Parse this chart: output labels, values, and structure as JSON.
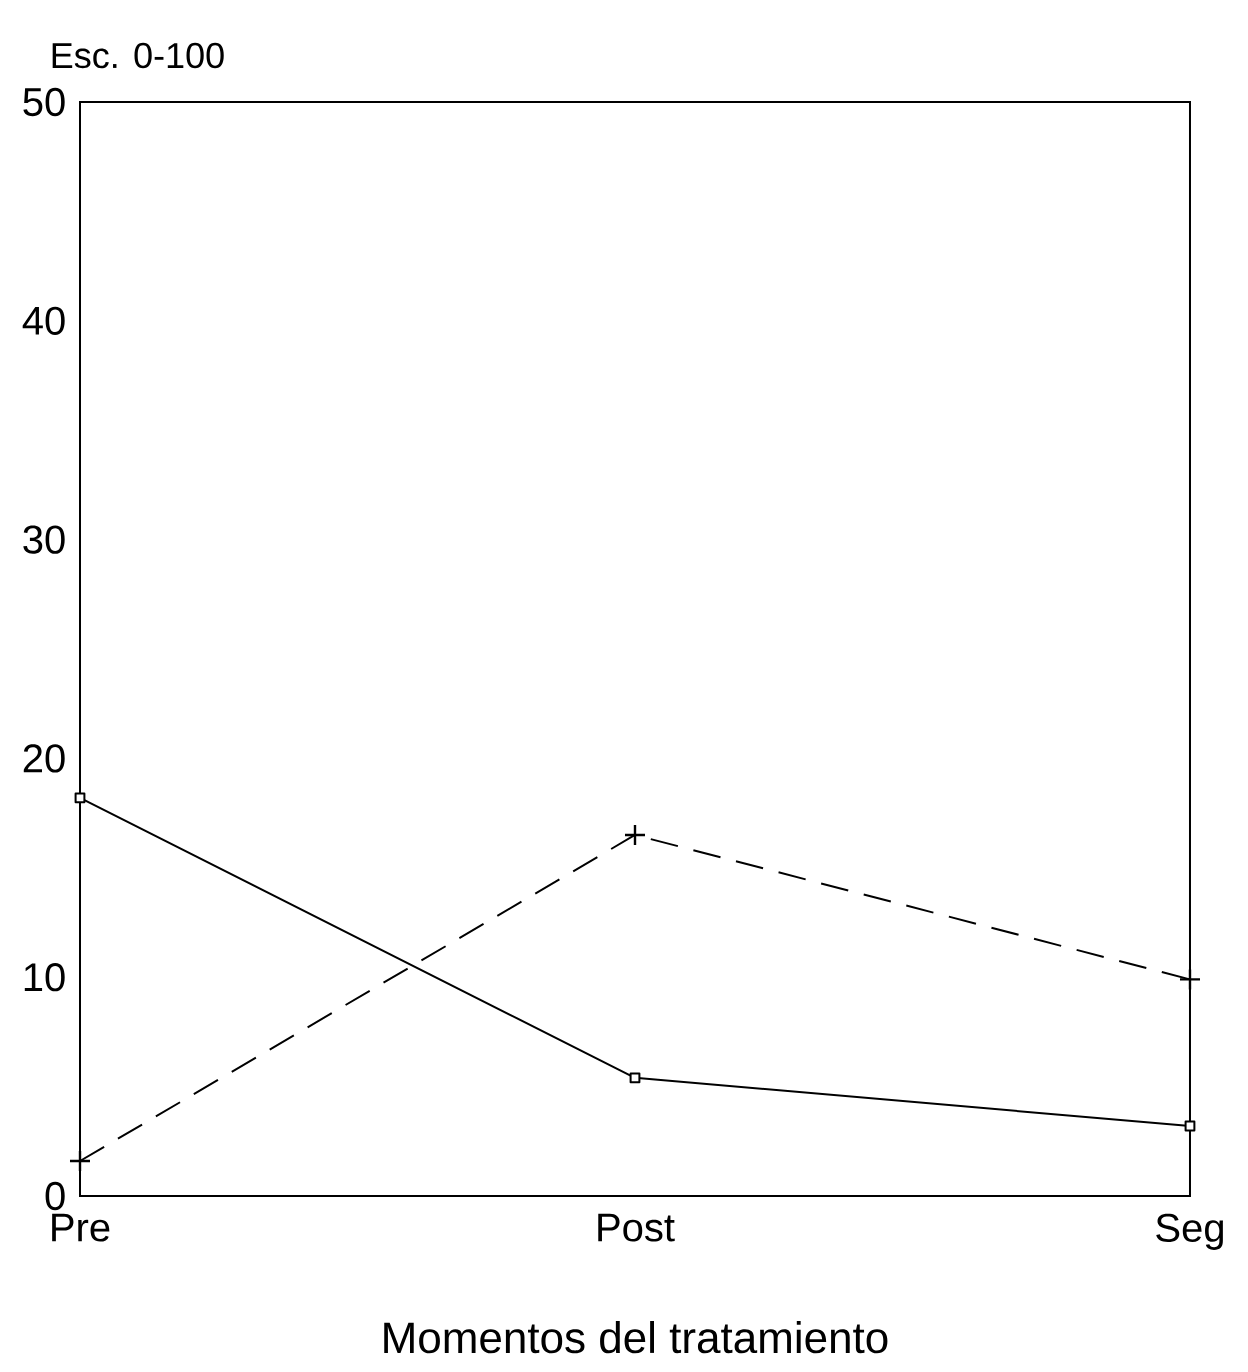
{
  "chart_data": {
    "type": "line",
    "ylabel": "Esc. 0-100",
    "xlabel": "Momentos del tratamiento",
    "categories": [
      "Pre",
      "Post",
      "Seg"
    ],
    "series": [
      {
        "color": "#000000",
        "values": [
          18.2,
          5.4,
          3.2
        ],
        "marker": "square",
        "line_style": "solid"
      },
      {
        "color": "#000000",
        "values": [
          1.6,
          16.5,
          9.9
        ],
        "marker": "cross",
        "line_style": "dashed"
      }
    ],
    "ylim": [
      0,
      50
    ],
    "yticks": [
      0,
      10,
      20,
      30,
      40,
      50
    ],
    "grid": false
  }
}
